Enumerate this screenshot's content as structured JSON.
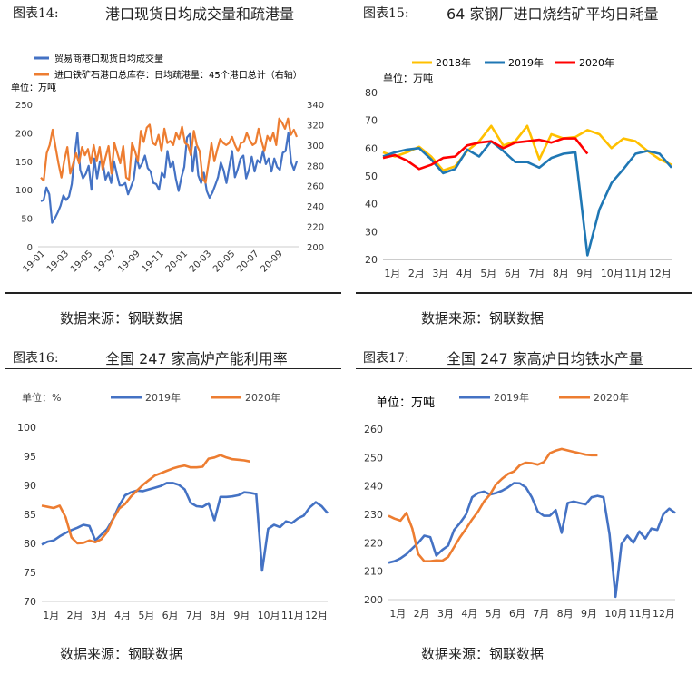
{
  "source_label": "数据来源：钢联数据",
  "charts": [
    {
      "fig": "图表14:",
      "title": "港口现货日均成交量和疏港量",
      "unit": "单位：万吨",
      "colors": [
        "#4472C4",
        "#ED7D31"
      ],
      "chart_data": {
        "type": "line",
        "x_ticks": [
          "19-01",
          "19-03",
          "19-05",
          "19-07",
          "19-09",
          "19-11",
          "20-01",
          "20-03",
          "20-05",
          "20-07",
          "20-09"
        ],
        "y_left": {
          "min": 0,
          "max": 250,
          "ticks": [
            0,
            50,
            100,
            150,
            200,
            250
          ]
        },
        "y_right": {
          "min": 200,
          "max": 340,
          "ticks": [
            200,
            220,
            240,
            260,
            280,
            300,
            320,
            340
          ]
        },
        "series": [
          {
            "name": "贸易商港口现货日均成交量",
            "axis": "left",
            "n": 92,
            "values": [
              80,
              82,
              104,
              92,
              42,
              50,
              60,
              72,
              90,
              82,
              88,
              110,
              160,
              200,
              135,
              120,
              128,
              142,
              100,
              155,
              120,
              150,
              148,
              118,
              130,
              112,
              150,
              128,
              108,
              108,
              112,
              92,
              105,
              118,
              158,
              138,
              146,
              160,
              138,
              132,
              112,
              110,
              100,
              130,
              122,
              168,
              140,
              150,
              120,
              98,
              122,
              140,
              192,
              198,
              132,
              175,
              125,
              112,
              130,
              98,
              86,
              95,
              108,
              122,
              148,
              134,
              112,
              140,
              168,
              122,
              136,
              155,
              160,
              120,
              135,
              158,
              132,
              152,
              147,
              168,
              145,
              155,
              132,
              155,
              140,
              135,
              165,
              168,
              200,
              148,
              135,
              150
            ]
          },
          {
            "name": "进口铁矿石港口总库存：日均疏港量：45个港口总计（右轴）",
            "axis": "right",
            "n": 88,
            "values": [
              268,
              265,
              292,
              300,
              315,
              298,
              282,
              268,
              285,
              298,
              272,
              282,
              292,
              282,
              298,
              290,
              296,
              282,
              300,
              284,
              298,
              276,
              288,
              299,
              272,
              302,
              292,
              282,
              299,
              268,
              266,
              302,
              294,
              284,
              314,
              303,
              317,
              320,
              302,
              300,
              310,
              294,
              316,
              302,
              304,
              300,
              312,
              306,
              318,
              302,
              300,
              290,
              314,
              300,
              294,
              267,
              263,
              282,
              302,
              284,
              296,
              306,
              302,
              300,
              302,
              308,
              300,
              294,
              302,
              303,
              312,
              305,
              300,
              302,
              316,
              304,
              294,
              309,
              304,
              312,
              300,
              326,
              322,
              316,
              326,
              310,
              315,
              308
            ]
          }
        ]
      }
    },
    {
      "fig": "图表15:",
      "title": "64 家钢厂进口烧结矿平均日耗量",
      "unit": "单位：万吨",
      "colors": [
        "#FFC000",
        "#1F77B4",
        "#FF0000"
      ],
      "chart_data": {
        "type": "line",
        "x_ticks": [
          "1月",
          "2月",
          "3月",
          "4月",
          "5月",
          "6月",
          "7月",
          "8月",
          "9月",
          "10月",
          "11月",
          "12月"
        ],
        "y": {
          "min": 20,
          "max": 80,
          "ticks": [
            20,
            30,
            40,
            50,
            60,
            70,
            80
          ]
        },
        "series": [
          {
            "name": "2018年",
            "n": 25,
            "values": [
              58.5,
              57,
              58.5,
              60.5,
              57,
              52,
              53.5,
              59,
              62.5,
              68,
              61,
              62.5,
              68,
              56,
              65,
              63.5,
              64,
              66.5,
              65,
              60,
              63.5,
              62.5,
              59,
              56,
              54
            ]
          },
          {
            "name": "2019年",
            "n": 25,
            "values": [
              57,
              58.5,
              59.5,
              60,
              56,
              51,
              52.5,
              59.5,
              57,
              62.5,
              59,
              55,
              55,
              53,
              56.5,
              58,
              58.5,
              21.5,
              38,
              47.5,
              52.5,
              58,
              59,
              58,
              53
            ]
          },
          {
            "name": "2020年",
            "n": 18,
            "values": [
              56.5,
              57.5,
              55.5,
              52.5,
              54,
              56.5,
              57,
              61,
              62,
              62.5,
              60,
              62,
              62.5,
              63,
              62,
              63.5,
              63.5,
              58
            ]
          }
        ]
      }
    },
    {
      "fig": "图表16:",
      "title": "全国 247 家高炉产能利用率",
      "unit": "单位：%",
      "colors": [
        "#4472C4",
        "#ED7D31"
      ],
      "chart_data": {
        "type": "line",
        "x_ticks": [
          "1月",
          "2月",
          "3月",
          "4月",
          "5月",
          "6月",
          "7月",
          "8月",
          "9月",
          "10月",
          "11月",
          "12月"
        ],
        "y": {
          "min": 70,
          "max": 100,
          "ticks": [
            70,
            75,
            80,
            85,
            90,
            95,
            100
          ]
        },
        "series": [
          {
            "name": "2019年",
            "n": 49,
            "values": [
              79.8,
              80.3,
              80.5,
              81.2,
              81.8,
              82.3,
              82.7,
              83.2,
              83,
              80.5,
              81.5,
              82.5,
              84.3,
              86.5,
              88.3,
              88.8,
              89.1,
              89,
              89.3,
              89.6,
              89.9,
              90.4,
              90.4,
              90.1,
              89.3,
              87,
              86.4,
              86.3,
              86.9,
              84,
              88,
              88,
              88.1,
              88.3,
              88.8,
              88.7,
              88.5,
              75.3,
              82.5,
              83.2,
              82.8,
              83.8,
              83.5,
              84.3,
              84.8,
              86.2,
              87.1,
              86.4,
              85.2
            ]
          },
          {
            "name": "2020年",
            "n": 36,
            "values": [
              86.5,
              86.3,
              86.1,
              86.5,
              84.5,
              81,
              80,
              80.1,
              80.5,
              80.2,
              80.7,
              82,
              84.2,
              86,
              86.8,
              88.1,
              89.1,
              90.1,
              90.9,
              91.7,
              92.1,
              92.5,
              92.9,
              93.2,
              93.4,
              93.1,
              93.1,
              93.2,
              94.6,
              94.8,
              95.2,
              94.8,
              94.5,
              94.4,
              94.3,
              94.1
            ]
          }
        ]
      }
    },
    {
      "fig": "图表17:",
      "title": "全国 247 家高炉日均铁水产量",
      "unit": "单位：万吨",
      "colors": [
        "#4472C4",
        "#ED7D31"
      ],
      "chart_data": {
        "type": "line",
        "x_ticks": [
          "1月",
          "2月",
          "3月",
          "4月",
          "5月",
          "6月",
          "7月",
          "8月",
          "9月",
          "10月",
          "11月",
          "12月"
        ],
        "y": {
          "min": 200,
          "max": 260,
          "ticks": [
            200,
            210,
            220,
            230,
            240,
            250,
            260
          ]
        },
        "series": [
          {
            "name": "2019年",
            "n": 49,
            "values": [
              213,
              213.5,
              214.5,
              216,
              218,
              220,
              222.5,
              222,
              215.5,
              217.5,
              219,
              224.5,
              227,
              230,
              236,
              237.5,
              238,
              237,
              237.5,
              238.3,
              239.5,
              241,
              240.9,
              239.5,
              236,
              231,
              229.5,
              229.5,
              231.5,
              223.5,
              234,
              234.5,
              234,
              233.5,
              236,
              236.5,
              236,
              223,
              201,
              219.5,
              222.5,
              220,
              224,
              221.5,
              225,
              224.5,
              230,
              232,
              230.5
            ]
          },
          {
            "name": "2020年",
            "n": 36,
            "values": [
              229.5,
              228.5,
              227.8,
              230.5,
              225,
              216,
              213.5,
              213.5,
              213.8,
              213.7,
              215,
              218.5,
              222,
              225,
              228.2,
              231,
              234.5,
              237,
              240.5,
              242.5,
              244.2,
              245.1,
              247.3,
              248.2,
              248,
              247.5,
              248.4,
              251.5,
              252.4,
              253,
              252.5,
              252,
              251.5,
              251,
              250.8,
              250.8
            ]
          }
        ]
      }
    }
  ]
}
